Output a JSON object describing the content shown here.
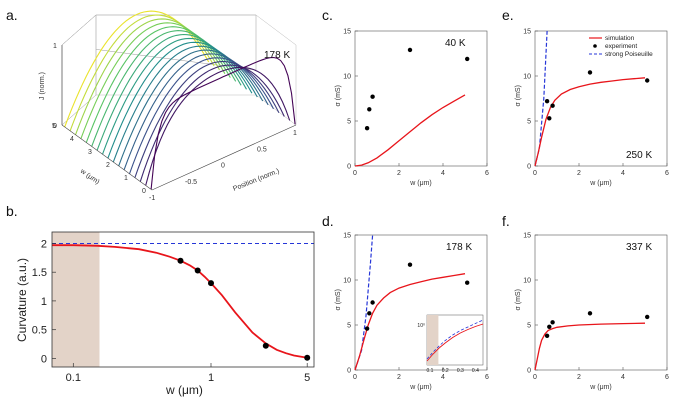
{
  "panel_labels": {
    "a": "a.",
    "b": "b.",
    "c": "c.",
    "d": "d.",
    "e": "e.",
    "f": "f."
  },
  "colors": {
    "simulation": "#e8151b",
    "experiment": "#000000",
    "poiseuille": "#2636d8",
    "shade": "#e3d3c8"
  },
  "chart_data": [
    {
      "id": "a",
      "type": "surface3d",
      "title": "178 K",
      "zlabel": "J (norm.)",
      "xlabel": "Position (norm.)",
      "ylabel": "w (μm)",
      "zticks": [
        "0",
        "1"
      ],
      "xticks": [
        "-1",
        "-0.5",
        "0",
        "0.5",
        "1"
      ],
      "yticks": [
        "0",
        "1",
        "2",
        "3",
        "4",
        "5"
      ],
      "widths": [
        0.05,
        0.35,
        0.65,
        0.95,
        1.25,
        1.55,
        1.85,
        2.15,
        2.45,
        2.75,
        3.05,
        3.35,
        3.65,
        3.95,
        4.25,
        4.55,
        4.85
      ],
      "description_note": "normalized current-density profiles across channel width"
    },
    {
      "id": "b",
      "type": "line",
      "xlabel": "w (μm)",
      "ylabel": "Curvature (a.u.)",
      "xscale": "log",
      "xlim": [
        0.07,
        5.6
      ],
      "ylim": [
        -0.15,
        2.2
      ],
      "xticks": [
        "0.1",
        "1",
        "5"
      ],
      "xtick_values": [
        0.1,
        1,
        5
      ],
      "yticks": [
        "0",
        "0.5",
        "1",
        "1.5",
        "2"
      ],
      "ytick_values": [
        0,
        0.5,
        1,
        1.5,
        2
      ],
      "shaded_region_x": [
        0.07,
        0.155
      ],
      "reference_y": 2.0,
      "curve_x": [
        0.07,
        0.1,
        0.15,
        0.2,
        0.3,
        0.4,
        0.5,
        0.6,
        0.7,
        0.8,
        0.9,
        1.0,
        1.2,
        1.5,
        2.0,
        2.5,
        3.0,
        3.5,
        4.0,
        5.0
      ],
      "curve_y": [
        1.97,
        1.97,
        1.96,
        1.94,
        1.9,
        1.84,
        1.77,
        1.7,
        1.62,
        1.53,
        1.42,
        1.31,
        1.1,
        0.8,
        0.45,
        0.26,
        0.15,
        0.09,
        0.05,
        0.01
      ],
      "points_x": [
        0.6,
        0.8,
        1.0,
        2.5,
        5.0
      ],
      "points_y": [
        1.7,
        1.53,
        1.31,
        0.22,
        0.01
      ]
    },
    {
      "id": "c",
      "type": "scatter+line",
      "temperature": "40 K",
      "xlabel": "w (μm)",
      "ylabel": "σ (mS)",
      "xlim": [
        0,
        6
      ],
      "ylim": [
        0,
        15
      ],
      "xticks": [
        "0",
        "2",
        "4",
        "6"
      ],
      "xtick_values": [
        0,
        2,
        4,
        6
      ],
      "yticks": [
        "0",
        "5",
        "10",
        "15"
      ],
      "ytick_values": [
        0,
        5,
        10,
        15
      ],
      "sim_x": [
        0,
        0.3,
        0.6,
        1.0,
        1.5,
        2.0,
        2.5,
        3.0,
        3.5,
        4.0,
        4.5,
        5.0
      ],
      "sim_y": [
        0,
        0.1,
        0.35,
        0.9,
        1.8,
        2.8,
        3.8,
        4.8,
        5.7,
        6.5,
        7.2,
        7.9
      ],
      "exp_x": [
        0.55,
        0.65,
        0.8,
        2.5,
        5.1
      ],
      "exp_y": [
        4.2,
        6.3,
        7.7,
        12.9,
        11.9
      ]
    },
    {
      "id": "d",
      "type": "scatter+line",
      "temperature": "178 K",
      "xlabel": "w (μm)",
      "ylabel": "σ (mS)",
      "xlim": [
        0,
        6
      ],
      "ylim": [
        0,
        15
      ],
      "xticks": [
        "0",
        "2",
        "4",
        "6"
      ],
      "xtick_values": [
        0,
        2,
        4,
        6
      ],
      "yticks": [
        "0",
        "5",
        "10",
        "15"
      ],
      "ytick_values": [
        0,
        5,
        10,
        15
      ],
      "sim_x": [
        0,
        0.2,
        0.4,
        0.6,
        0.8,
        1.0,
        1.3,
        1.6,
        2.0,
        2.5,
        3.0,
        3.5,
        4.0,
        4.5,
        5.0
      ],
      "sim_y": [
        0,
        1.5,
        3.3,
        5.0,
        6.3,
        7.2,
        8.0,
        8.6,
        9.1,
        9.5,
        9.8,
        10.1,
        10.3,
        10.5,
        10.7
      ],
      "pois_x": [
        0,
        0.3,
        0.5,
        0.7,
        0.8
      ],
      "pois_y": [
        0,
        2.2,
        6.0,
        11.8,
        15.0
      ],
      "exp_x": [
        0.55,
        0.65,
        0.8,
        2.5,
        5.1
      ],
      "exp_y": [
        4.6,
        6.3,
        7.5,
        11.7,
        9.7
      ],
      "inset": {
        "ylabel": "10⁰",
        "xticks": [
          "0.1",
          "0.2",
          "0.3",
          "0.4"
        ],
        "xtick_values": [
          0.1,
          0.2,
          0.3,
          0.4
        ],
        "xlim": [
          0.08,
          0.45
        ],
        "ylim": [
          0,
          1
        ],
        "shade_x": [
          0.08,
          0.155
        ],
        "sim_x": [
          0.08,
          0.12,
          0.16,
          0.2,
          0.25,
          0.3,
          0.35,
          0.4,
          0.45
        ],
        "sim_y": [
          0.08,
          0.22,
          0.34,
          0.44,
          0.55,
          0.64,
          0.71,
          0.77,
          0.82
        ],
        "pois_x": [
          0.08,
          0.12,
          0.16,
          0.2,
          0.25,
          0.3,
          0.35,
          0.4,
          0.45
        ],
        "pois_y": [
          0.12,
          0.26,
          0.38,
          0.49,
          0.6,
          0.69,
          0.76,
          0.83,
          0.9
        ]
      }
    },
    {
      "id": "e",
      "type": "scatter+line",
      "temperature": "250 K",
      "xlabel": "w (μm)",
      "ylabel": "σ (mS)",
      "xlim": [
        0,
        6
      ],
      "ylim": [
        0,
        15
      ],
      "xticks": [
        "0",
        "2",
        "4",
        "6"
      ],
      "xtick_values": [
        0,
        2,
        4,
        6
      ],
      "yticks": [
        "0",
        "5",
        "10",
        "15"
      ],
      "ytick_values": [
        0,
        5,
        10,
        15
      ],
      "legend": [
        "simulation",
        "experiment",
        "strong Poiseuille"
      ],
      "sim_x": [
        0,
        0.15,
        0.3,
        0.5,
        0.7,
        0.9,
        1.2,
        1.6,
        2.0,
        2.5,
        3.0,
        3.5,
        4.0,
        4.5,
        5.0
      ],
      "sim_y": [
        0,
        1.5,
        3.2,
        5.2,
        6.5,
        7.3,
        8.0,
        8.5,
        8.8,
        9.1,
        9.3,
        9.45,
        9.6,
        9.7,
        9.8
      ],
      "pois_x": [
        0,
        0.2,
        0.4,
        0.5,
        0.55
      ],
      "pois_y": [
        0,
        2.0,
        7.5,
        12.5,
        15.0
      ],
      "exp_x": [
        0.55,
        0.65,
        0.8,
        2.5,
        5.1
      ],
      "exp_y": [
        7.2,
        5.3,
        6.7,
        10.4,
        9.5
      ]
    },
    {
      "id": "f",
      "type": "scatter+line",
      "temperature": "337 K",
      "xlabel": "w (μm)",
      "ylabel": "σ (mS)",
      "xlim": [
        0,
        6
      ],
      "ylim": [
        0,
        15
      ],
      "xticks": [
        "0",
        "2",
        "4",
        "6"
      ],
      "xtick_values": [
        0,
        2,
        4,
        6
      ],
      "yticks": [
        "0",
        "5",
        "10",
        "15"
      ],
      "ytick_values": [
        0,
        5,
        10,
        15
      ],
      "sim_x": [
        0,
        0.1,
        0.2,
        0.3,
        0.45,
        0.6,
        0.8,
        1.0,
        1.5,
        2.0,
        3.0,
        4.0,
        5.0
      ],
      "sim_y": [
        0,
        1.2,
        2.4,
        3.3,
        4.0,
        4.4,
        4.6,
        4.75,
        4.9,
        5.0,
        5.1,
        5.15,
        5.2
      ],
      "exp_x": [
        0.55,
        0.65,
        0.8,
        2.5,
        5.1
      ],
      "exp_y": [
        3.8,
        4.8,
        5.3,
        6.3,
        5.9
      ]
    }
  ]
}
